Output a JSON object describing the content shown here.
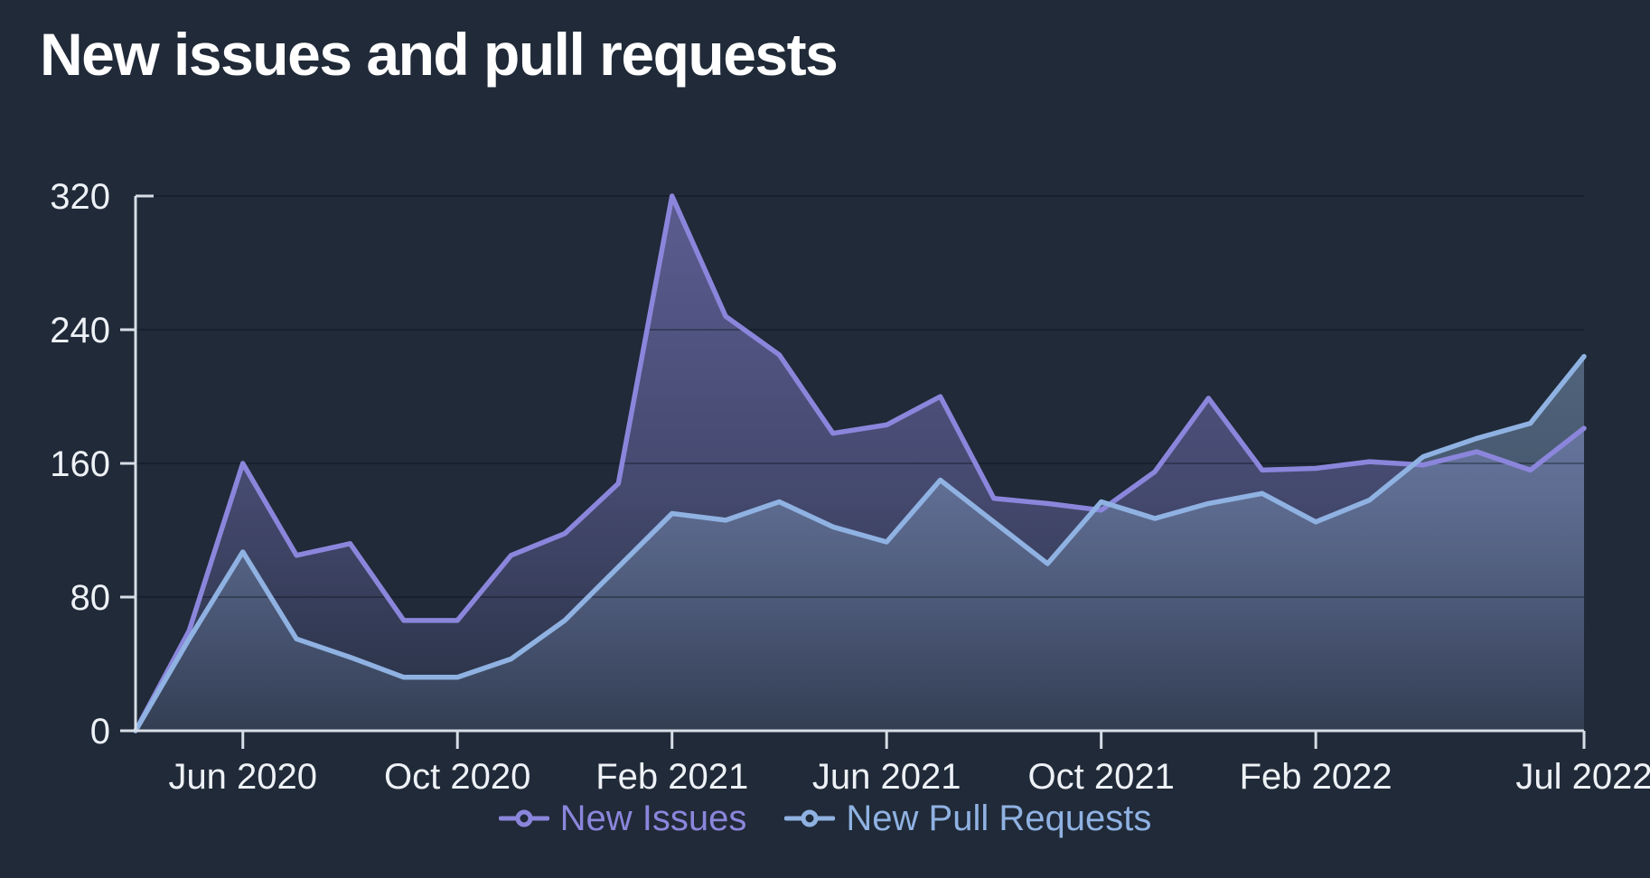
{
  "title": "New issues and pull requests",
  "colors": {
    "background": "#202a38",
    "issues_line": "#8b86dc",
    "pull_requests_line": "#8fb2e2",
    "axis": "#d7dde6",
    "tick_label": "#eef2f7",
    "gridline": "rgba(10,16,26,0.35)"
  },
  "legend": {
    "items": [
      {
        "label": "New Issues",
        "color": "#8b86dc"
      },
      {
        "label": "New Pull Requests",
        "color": "#8fb2e2"
      }
    ]
  },
  "chart_data": {
    "type": "area",
    "title": "New issues and pull requests",
    "xlabel": "",
    "ylabel": "",
    "ylim": [
      0,
      320
    ],
    "y_ticks": [
      0,
      80,
      160,
      240,
      320
    ],
    "grid": true,
    "legend_position": "bottom",
    "x": [
      "Apr 2020",
      "May 2020",
      "Jun 2020",
      "Jul 2020",
      "Aug 2020",
      "Sep 2020",
      "Oct 2020",
      "Nov 2020",
      "Dec 2020",
      "Jan 2021",
      "Feb 2021",
      "Mar 2021",
      "Apr 2021",
      "May 2021",
      "Jun 2021",
      "Jul 2021",
      "Aug 2021",
      "Sep 2021",
      "Oct 2021",
      "Nov 2021",
      "Dec 2021",
      "Jan 2022",
      "Feb 2022",
      "Mar 2022",
      "Apr 2022",
      "May 2022",
      "Jun 2022",
      "Jul 2022"
    ],
    "x_tick_labels": [
      {
        "index": 2,
        "label": "Jun 2020"
      },
      {
        "index": 6,
        "label": "Oct 2020"
      },
      {
        "index": 10,
        "label": "Feb 2021"
      },
      {
        "index": 14,
        "label": "Jun 2021"
      },
      {
        "index": 18,
        "label": "Oct 2021"
      },
      {
        "index": 22,
        "label": "Feb 2022"
      },
      {
        "index": 27,
        "label": "Jul 2022"
      }
    ],
    "series": [
      {
        "name": "New Issues",
        "values": [
          0,
          60,
          160,
          105,
          112,
          66,
          66,
          105,
          118,
          148,
          320,
          248,
          225,
          178,
          183,
          200,
          139,
          136,
          132,
          155,
          199,
          156,
          157,
          161,
          159,
          167,
          156,
          181
        ]
      },
      {
        "name": "New Pull Requests",
        "values": [
          0,
          55,
          107,
          55,
          44,
          32,
          32,
          43,
          66,
          98,
          130,
          126,
          137,
          122,
          113,
          150,
          125,
          100,
          137,
          127,
          136,
          142,
          125,
          138,
          164,
          175,
          184,
          224
        ]
      }
    ]
  }
}
